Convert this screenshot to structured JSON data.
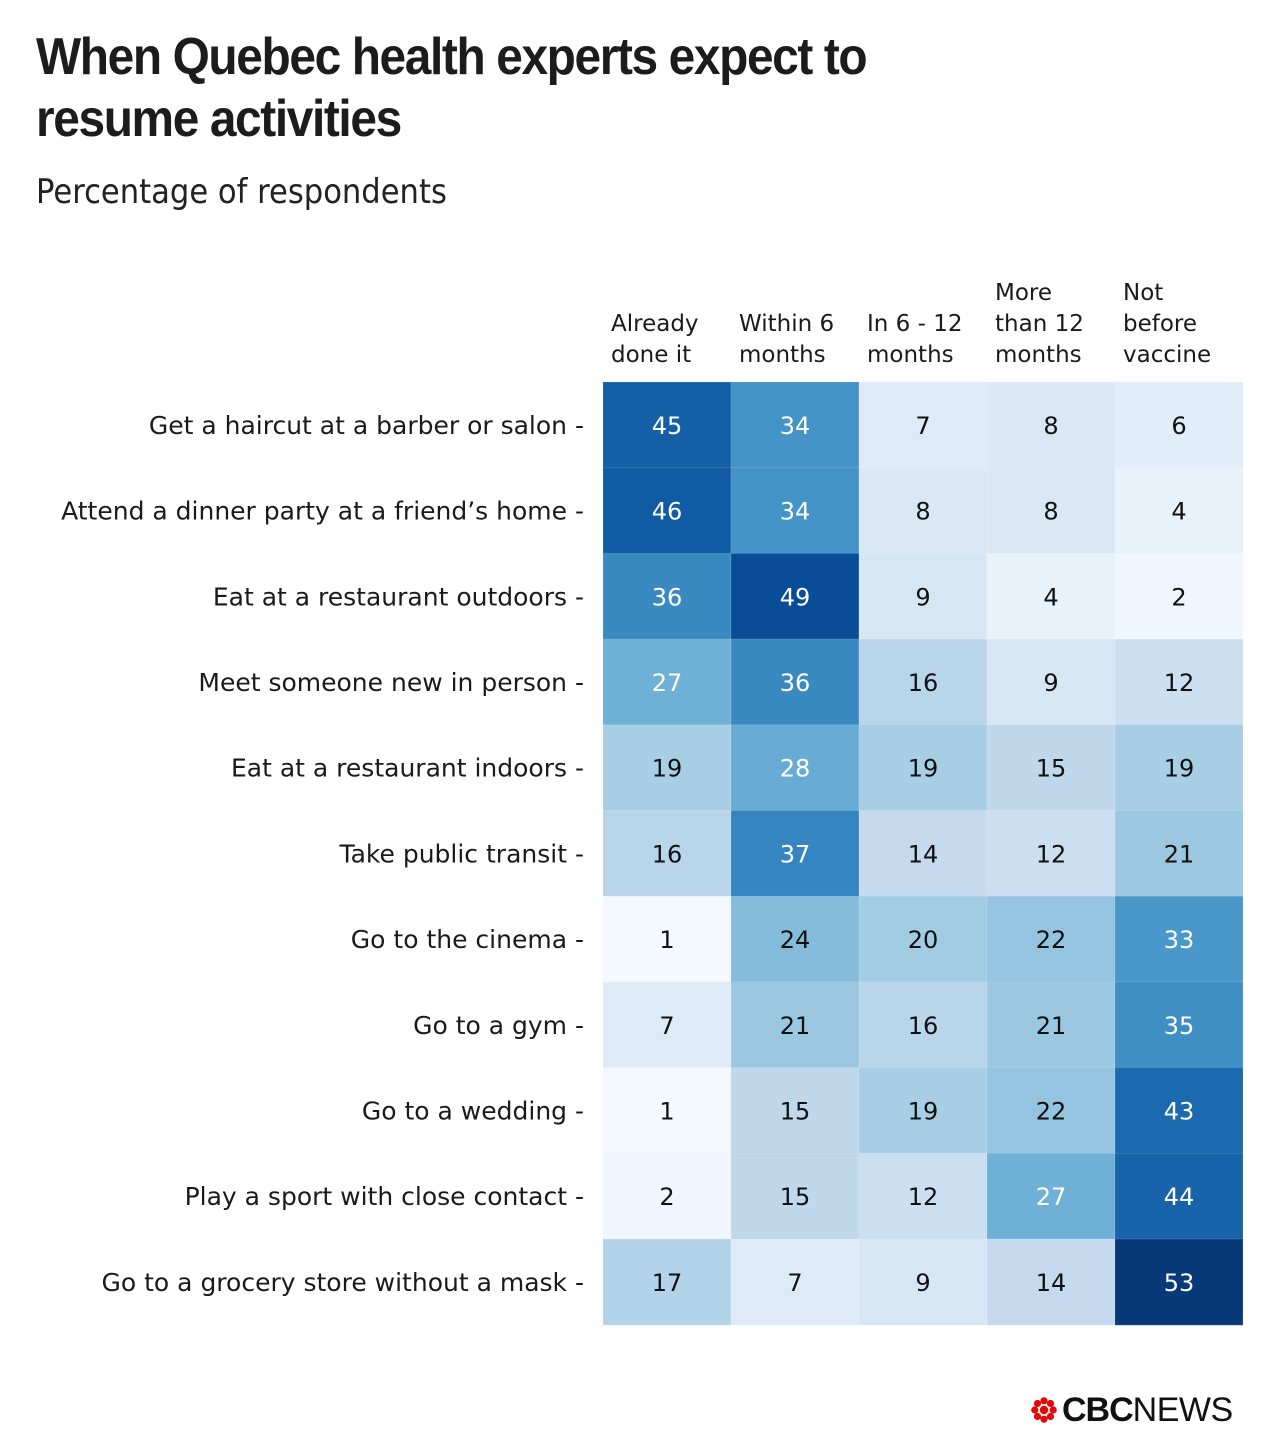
{
  "header": {
    "title": "When Quebec health experts expect to resume activities",
    "subtitle": "Percentage of respondents"
  },
  "brand": {
    "logo_bold": "CBC",
    "logo_light": "NEWS",
    "logo_color": "#e60505"
  },
  "chart_data": {
    "type": "heatmap",
    "title": "When Quebec health experts expect to resume activities",
    "subtitle": "Percentage of respondents",
    "xlabel": "",
    "ylabel": "",
    "columns": [
      [
        "Already",
        "done it"
      ],
      [
        "Within 6",
        "months"
      ],
      [
        "In 6 - 12",
        "months"
      ],
      [
        "More",
        "than 12",
        "months"
      ],
      [
        "Not",
        "before",
        "vaccine"
      ]
    ],
    "column_names": [
      "Already done it",
      "Within 6 months",
      "In 6 - 12 months",
      "More than 12 months",
      "Not before vaccine"
    ],
    "rows": [
      "Get a haircut at a barber or salon",
      "Attend a dinner party at a friend’s home",
      "Eat at a restaurant outdoors",
      "Meet someone new in person",
      "Eat at a restaurant indoors",
      "Take public transit",
      "Go to the cinema",
      "Go to a gym",
      "Go to a wedding",
      "Play a sport with close contact",
      "Go to a grocery store without a mask"
    ],
    "values": [
      [
        45,
        34,
        7,
        8,
        6
      ],
      [
        46,
        34,
        8,
        8,
        4
      ],
      [
        36,
        49,
        9,
        4,
        2
      ],
      [
        27,
        36,
        16,
        9,
        12
      ],
      [
        19,
        28,
        19,
        15,
        19
      ],
      [
        16,
        37,
        14,
        12,
        21
      ],
      [
        1,
        24,
        20,
        22,
        33
      ],
      [
        7,
        21,
        16,
        21,
        35
      ],
      [
        1,
        15,
        19,
        22,
        43
      ],
      [
        2,
        15,
        12,
        27,
        44
      ],
      [
        17,
        7,
        9,
        14,
        53
      ]
    ],
    "value_range": [
      0,
      55
    ],
    "colorscale": "Blues",
    "row_label_suffix": " -"
  }
}
